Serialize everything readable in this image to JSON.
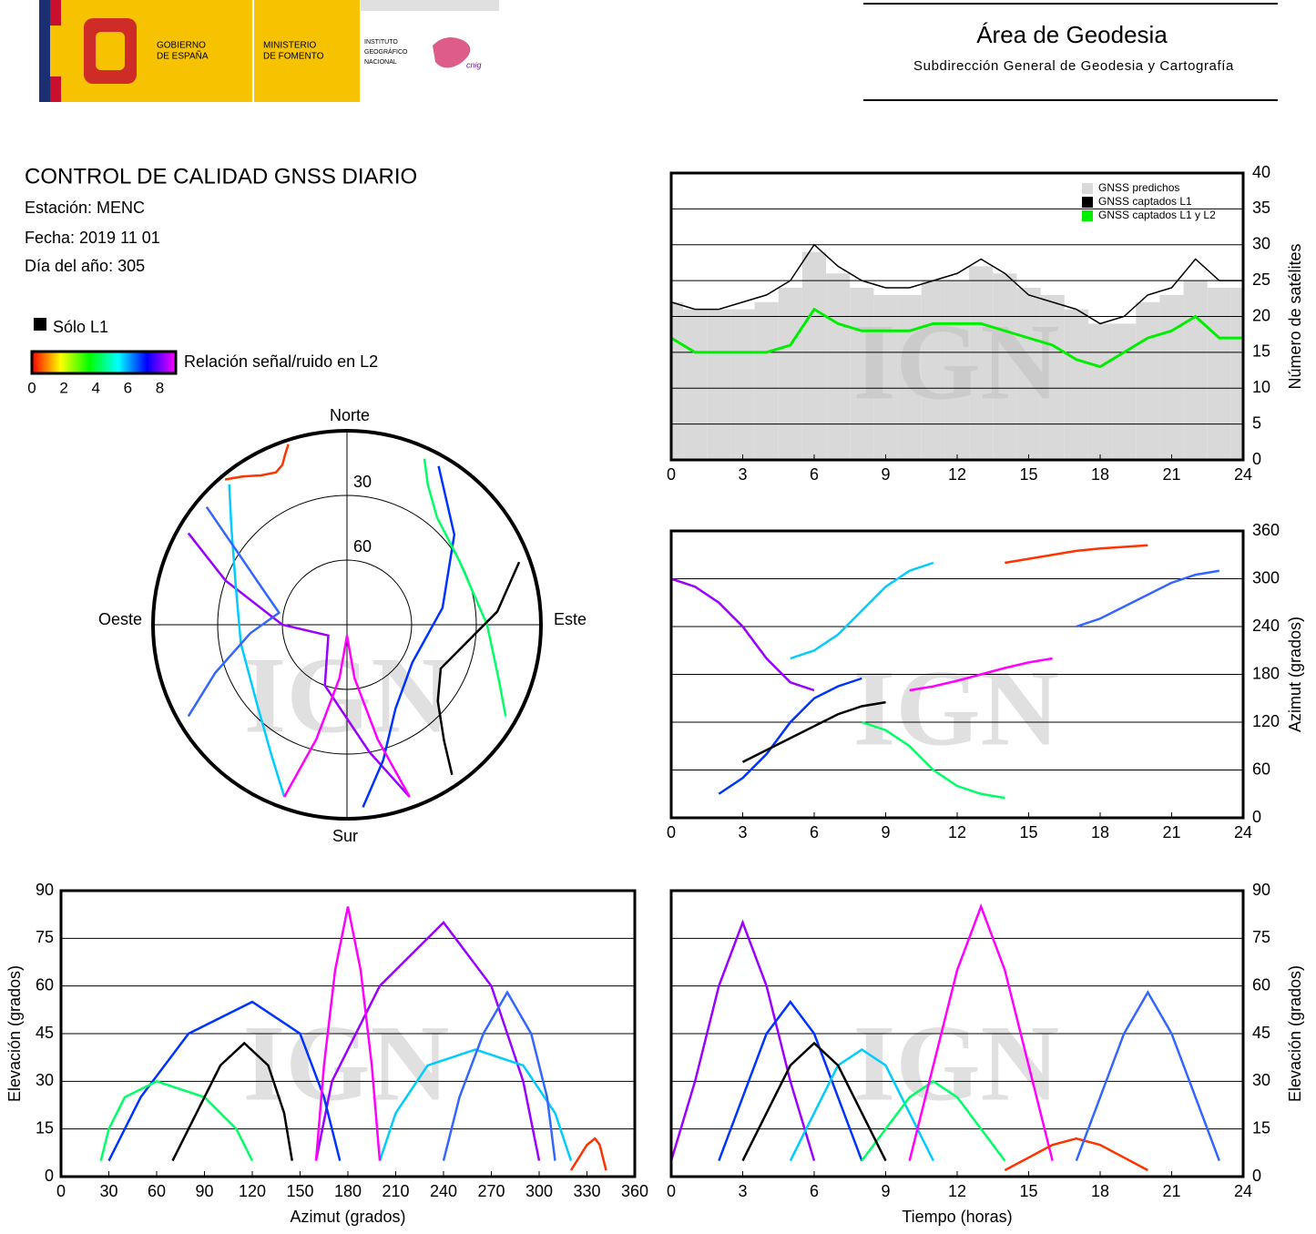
{
  "header": {
    "gobierno": [
      "GOBIERNO",
      "DE ESPAÑA"
    ],
    "ministerio": [
      "MINISTERIO",
      "DE FOMENTO"
    ],
    "instituto": [
      "INSTITUTO",
      "GEOGRÁFICO",
      "NACIONAL"
    ],
    "logo_text": "cnig",
    "area": "Área de Geodesia",
    "subdireccion": "Subdirección General de Geodesia y Cartografía"
  },
  "info": {
    "title": "CONTROL DE CALIDAD GNSS DIARIO",
    "estacion": "Estación: MENC",
    "fecha": "Fecha: 2019 11 01",
    "dia": "Día del año: 305",
    "solo_l1": "Sólo L1",
    "solo_l1_color": "#000000",
    "colorbar_label": "Relación señal/ruido en L2",
    "colorbar_colors": [
      "#ff0000",
      "#ffff00",
      "#00ff00",
      "#00ffff",
      "#0000ff",
      "#ff00ff"
    ],
    "colorbar_lim": [
      0,
      9
    ],
    "colorbar_ticks": [
      0,
      2,
      4,
      6,
      8
    ],
    "watermark": "IGN"
  },
  "satellite_tracks": [
    {
      "color": "#9900ff",
      "x": [
        0,
        1,
        2,
        3,
        4,
        5,
        6
      ],
      "azimuth": [
        300,
        290,
        270,
        240,
        200,
        170,
        160
      ],
      "elevation": [
        5,
        30,
        60,
        80,
        60,
        30,
        5
      ]
    },
    {
      "color": "#0033ff",
      "x": [
        2,
        3,
        4,
        5,
        6,
        7,
        8
      ],
      "azimuth": [
        30,
        50,
        80,
        120,
        150,
        165,
        175
      ],
      "elevation": [
        5,
        25,
        45,
        55,
        45,
        25,
        5
      ]
    },
    {
      "color": "#00ccff",
      "x": [
        5,
        6,
        7,
        8,
        9,
        10,
        11
      ],
      "azimuth": [
        200,
        210,
        230,
        260,
        290,
        310,
        320
      ],
      "elevation": [
        5,
        20,
        35,
        40,
        35,
        20,
        5
      ]
    },
    {
      "color": "#00ff66",
      "x": [
        8,
        9,
        10,
        11,
        12,
        13,
        14
      ],
      "azimuth": [
        120,
        110,
        90,
        60,
        40,
        30,
        25
      ],
      "elevation": [
        5,
        15,
        25,
        30,
        25,
        15,
        5
      ]
    },
    {
      "color": "#ff00ff",
      "x": [
        10,
        11,
        12,
        13,
        14,
        15,
        16
      ],
      "azimuth": [
        160,
        165,
        172,
        180,
        188,
        195,
        200
      ],
      "elevation": [
        5,
        35,
        65,
        85,
        65,
        35,
        5
      ]
    },
    {
      "color": "#000000",
      "x": [
        3,
        4,
        5,
        6,
        7,
        8,
        9
      ],
      "azimuth": [
        70,
        85,
        100,
        115,
        130,
        140,
        145
      ],
      "elevation": [
        5,
        20,
        35,
        42,
        35,
        20,
        5
      ]
    },
    {
      "color": "#ff3300",
      "x": [
        14,
        15,
        16,
        17,
        18,
        19,
        20
      ],
      "azimuth": [
        320,
        325,
        330,
        335,
        338,
        340,
        342
      ],
      "elevation": [
        2,
        6,
        10,
        12,
        10,
        6,
        2
      ]
    },
    {
      "color": "#3366ff",
      "x": [
        17,
        18,
        19,
        20,
        21,
        22,
        23
      ],
      "azimuth": [
        240,
        250,
        265,
        280,
        295,
        305,
        310
      ],
      "elevation": [
        5,
        25,
        45,
        58,
        45,
        25,
        5
      ]
    }
  ],
  "chart_data": [
    {
      "type": "count",
      "y_label": "Número de satélites",
      "x": [
        0,
        1,
        2,
        3,
        4,
        5,
        6,
        7,
        8,
        9,
        10,
        11,
        12,
        13,
        14,
        15,
        16,
        17,
        18,
        19,
        20,
        21,
        22,
        23,
        24
      ],
      "series": [
        {
          "name": "GNSS predichos",
          "color": "#d9d9d9",
          "values": [
            22,
            21,
            21,
            21,
            22,
            24,
            29,
            26,
            24,
            23,
            23,
            25,
            25,
            27,
            26,
            24,
            23,
            21,
            19,
            19,
            22,
            23,
            25,
            24,
            24
          ]
        },
        {
          "name": "GNSS captados L1",
          "color": "#000000",
          "values": [
            22,
            21,
            21,
            22,
            23,
            25,
            30,
            27,
            25,
            24,
            24,
            25,
            26,
            28,
            26,
            23,
            22,
            21,
            19,
            20,
            23,
            24,
            28,
            25,
            25
          ]
        },
        {
          "name": "GNSS captados L1 y L2",
          "color": "#00ee00",
          "values": [
            17,
            15,
            15,
            15,
            15,
            16,
            21,
            19,
            18,
            18,
            18,
            19,
            19,
            19,
            18,
            17,
            16,
            14,
            13,
            15,
            17,
            18,
            20,
            17,
            17
          ]
        }
      ],
      "xlim": [
        0,
        24
      ],
      "xticks": [
        0,
        3,
        6,
        9,
        12,
        15,
        18,
        21,
        24
      ],
      "ylim": [
        0,
        40
      ],
      "yticks": [
        0,
        5,
        10,
        15,
        20,
        25,
        30,
        35,
        40
      ],
      "grid": true
    },
    {
      "type": "skyplot",
      "north": "Norte",
      "south": "Sur",
      "west": "Oeste",
      "east": "Este",
      "rings": [
        30,
        60
      ]
    },
    {
      "type": "azimuth-time",
      "y_label": "Azimut (grados)",
      "xlim": [
        0,
        24
      ],
      "xticks": [
        0,
        3,
        6,
        9,
        12,
        15,
        18,
        21,
        24
      ],
      "ylim": [
        0,
        360
      ],
      "yticks": [
        0,
        60,
        120,
        180,
        240,
        300,
        360
      ],
      "grid": true
    },
    {
      "type": "elevation-azimuth",
      "x_label": "Azimut (grados)",
      "y_label": "Elevación (grados)",
      "xlim": [
        0,
        360
      ],
      "xticks": [
        0,
        30,
        60,
        90,
        120,
        150,
        180,
        210,
        240,
        270,
        300,
        330,
        360
      ],
      "ylim": [
        0,
        90
      ],
      "yticks": [
        0,
        15,
        30,
        45,
        60,
        75,
        90
      ],
      "grid": true
    },
    {
      "type": "elevation-time",
      "x_label": "Tiempo (horas)",
      "y_label": "Elevación (grados)",
      "xlim": [
        0,
        24
      ],
      "xticks": [
        0,
        3,
        6,
        9,
        12,
        15,
        18,
        21,
        24
      ],
      "ylim": [
        0,
        90
      ],
      "yticks": [
        0,
        15,
        30,
        45,
        60,
        75,
        90
      ],
      "grid": true
    }
  ]
}
